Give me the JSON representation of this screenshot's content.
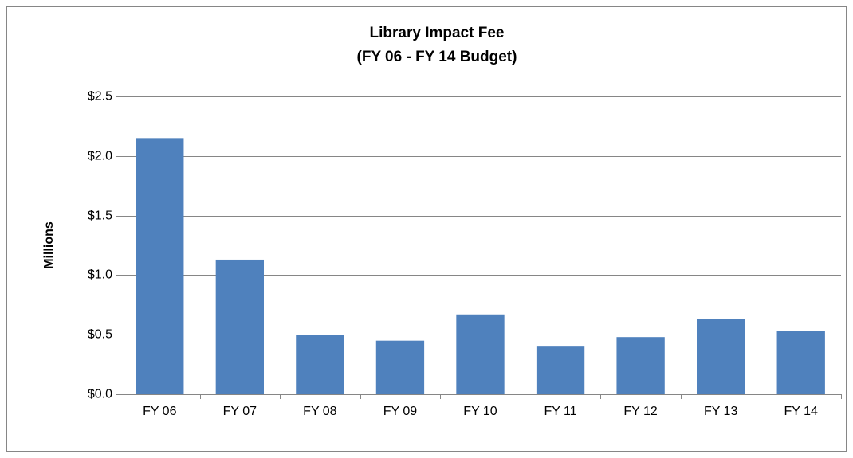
{
  "chart_data": {
    "type": "bar",
    "title": "Library Impact Fee",
    "subtitle": "(FY 06 - FY 14 Budget)",
    "y_label": "Millions",
    "categories": [
      "FY 06",
      "FY 07",
      "FY 08",
      "FY 09",
      "FY 10",
      "FY 11",
      "FY 12",
      "FY 13",
      "FY 14"
    ],
    "values": [
      2.15,
      1.13,
      0.5,
      0.45,
      0.67,
      0.4,
      0.48,
      0.63,
      0.53
    ],
    "color": "#4f81bd",
    "ylim": [
      0,
      2.5
    ],
    "yticks": [
      {
        "value": 0,
        "label": "$0.0"
      },
      {
        "value": 0.5,
        "label": "$0.5"
      },
      {
        "value": 1,
        "label": "$1.0"
      },
      {
        "value": 1.5,
        "label": "$1.5"
      },
      {
        "value": 2,
        "label": "$2.0"
      },
      {
        "value": 2.5,
        "label": "$2.5"
      }
    ],
    "grid": true
  }
}
